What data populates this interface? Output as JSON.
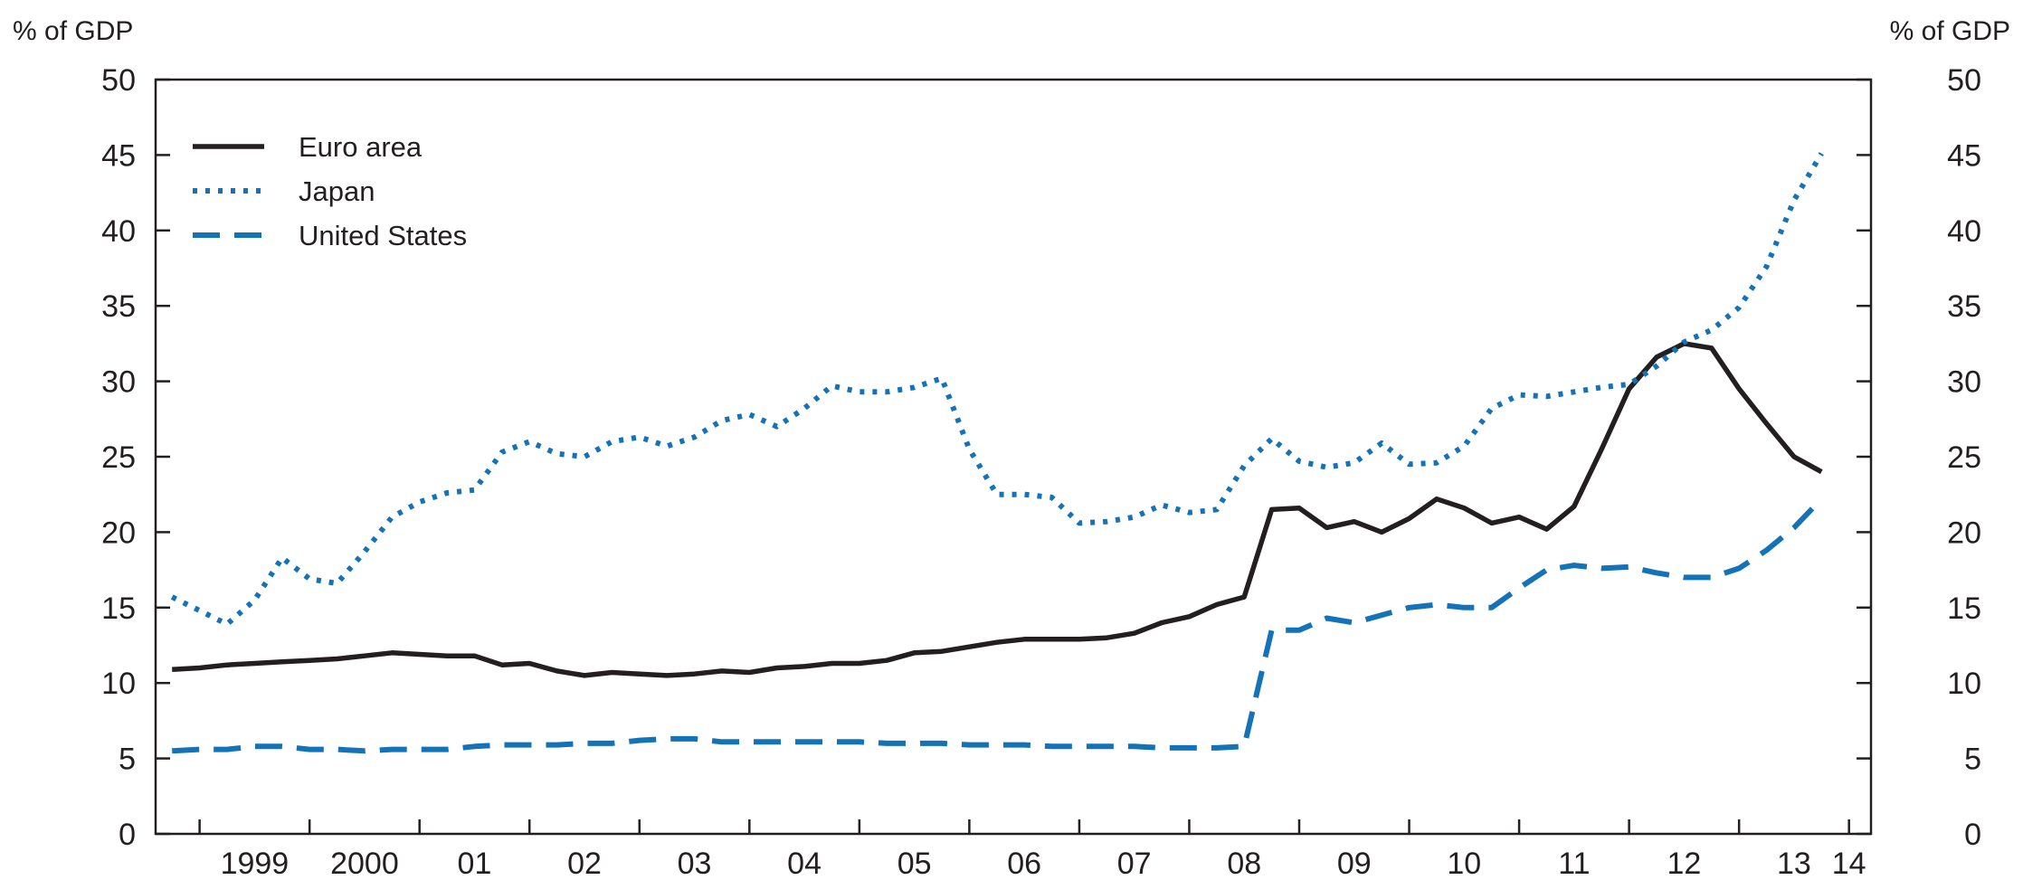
{
  "chart_data": {
    "type": "line",
    "title": "",
    "y_unit_left": "% of GDP",
    "y_unit_right": "% of GDP",
    "ylim": [
      0,
      50
    ],
    "yticks": [
      0,
      5,
      10,
      15,
      20,
      25,
      30,
      35,
      40,
      45,
      50
    ],
    "xlim": [
      1998.6,
      2014.2
    ],
    "x_tick_labels": [
      {
        "x": 1999.5,
        "label": "1999"
      },
      {
        "x": 2000.5,
        "label": "2000"
      },
      {
        "x": 2001.5,
        "label": "01"
      },
      {
        "x": 2002.5,
        "label": "02"
      },
      {
        "x": 2003.5,
        "label": "03"
      },
      {
        "x": 2004.5,
        "label": "04"
      },
      {
        "x": 2005.5,
        "label": "05"
      },
      {
        "x": 2006.5,
        "label": "06"
      },
      {
        "x": 2007.5,
        "label": "07"
      },
      {
        "x": 2008.5,
        "label": "08"
      },
      {
        "x": 2009.5,
        "label": "09"
      },
      {
        "x": 2010.5,
        "label": "10"
      },
      {
        "x": 2011.5,
        "label": "11"
      },
      {
        "x": 2012.5,
        "label": "12"
      },
      {
        "x": 2013.5,
        "label": "13"
      },
      {
        "x": 2014.0,
        "label": "14"
      }
    ],
    "x_year_boundaries": [
      1999,
      2000,
      2001,
      2002,
      2003,
      2004,
      2005,
      2006,
      2007,
      2008,
      2009,
      2010,
      2011,
      2012,
      2013,
      2014
    ],
    "grid": false,
    "legend_position": "top-left",
    "series": [
      {
        "name": "Euro area",
        "style": "solid",
        "color": "#231f20",
        "points": [
          [
            1998.75,
            10.9
          ],
          [
            1999.0,
            11.0
          ],
          [
            1999.25,
            11.2
          ],
          [
            1999.5,
            11.3
          ],
          [
            1999.75,
            11.4
          ],
          [
            2000.0,
            11.5
          ],
          [
            2000.25,
            11.6
          ],
          [
            2000.5,
            11.8
          ],
          [
            2000.75,
            12.0
          ],
          [
            2001.0,
            11.9
          ],
          [
            2001.25,
            11.8
          ],
          [
            2001.5,
            11.8
          ],
          [
            2001.75,
            11.2
          ],
          [
            2002.0,
            11.3
          ],
          [
            2002.25,
            10.8
          ],
          [
            2002.5,
            10.5
          ],
          [
            2002.75,
            10.7
          ],
          [
            2003.0,
            10.6
          ],
          [
            2003.25,
            10.5
          ],
          [
            2003.5,
            10.6
          ],
          [
            2003.75,
            10.8
          ],
          [
            2004.0,
            10.7
          ],
          [
            2004.25,
            11.0
          ],
          [
            2004.5,
            11.1
          ],
          [
            2004.75,
            11.3
          ],
          [
            2005.0,
            11.3
          ],
          [
            2005.25,
            11.5
          ],
          [
            2005.5,
            12.0
          ],
          [
            2005.75,
            12.1
          ],
          [
            2006.0,
            12.4
          ],
          [
            2006.25,
            12.7
          ],
          [
            2006.5,
            12.9
          ],
          [
            2006.75,
            12.9
          ],
          [
            2007.0,
            12.9
          ],
          [
            2007.25,
            13.0
          ],
          [
            2007.5,
            13.3
          ],
          [
            2007.75,
            14.0
          ],
          [
            2008.0,
            14.4
          ],
          [
            2008.25,
            15.2
          ],
          [
            2008.5,
            15.7
          ],
          [
            2008.75,
            21.5
          ],
          [
            2009.0,
            21.6
          ],
          [
            2009.25,
            20.3
          ],
          [
            2009.5,
            20.7
          ],
          [
            2009.75,
            20.0
          ],
          [
            2010.0,
            20.9
          ],
          [
            2010.25,
            22.2
          ],
          [
            2010.5,
            21.6
          ],
          [
            2010.75,
            20.6
          ],
          [
            2011.0,
            21.0
          ],
          [
            2011.25,
            20.2
          ],
          [
            2011.5,
            21.7
          ],
          [
            2011.75,
            25.5
          ],
          [
            2012.0,
            29.5
          ],
          [
            2012.25,
            31.6
          ],
          [
            2012.5,
            32.5
          ],
          [
            2012.75,
            32.2
          ],
          [
            2013.0,
            29.5
          ],
          [
            2013.25,
            27.2
          ],
          [
            2013.5,
            25.0
          ],
          [
            2013.75,
            24.0
          ]
        ]
      },
      {
        "name": "Japan",
        "style": "dotted",
        "color": "#1473b8",
        "points": [
          [
            1998.75,
            15.7
          ],
          [
            1999.0,
            14.8
          ],
          [
            1999.25,
            13.9
          ],
          [
            1999.5,
            15.5
          ],
          [
            1999.75,
            18.3
          ],
          [
            2000.0,
            16.9
          ],
          [
            2000.25,
            16.6
          ],
          [
            2000.5,
            18.7
          ],
          [
            2000.75,
            21.0
          ],
          [
            2001.0,
            22.0
          ],
          [
            2001.25,
            22.6
          ],
          [
            2001.5,
            22.8
          ],
          [
            2001.75,
            25.3
          ],
          [
            2002.0,
            26.0
          ],
          [
            2002.25,
            25.2
          ],
          [
            2002.5,
            25.0
          ],
          [
            2002.75,
            26.0
          ],
          [
            2003.0,
            26.3
          ],
          [
            2003.25,
            25.7
          ],
          [
            2003.5,
            26.3
          ],
          [
            2003.75,
            27.4
          ],
          [
            2004.0,
            27.8
          ],
          [
            2004.25,
            27.0
          ],
          [
            2004.5,
            28.2
          ],
          [
            2004.75,
            29.7
          ],
          [
            2005.0,
            29.3
          ],
          [
            2005.25,
            29.3
          ],
          [
            2005.5,
            29.6
          ],
          [
            2005.75,
            30.2
          ],
          [
            2006.0,
            25.5
          ],
          [
            2006.25,
            22.5
          ],
          [
            2006.5,
            22.5
          ],
          [
            2006.75,
            22.3
          ],
          [
            2007.0,
            20.6
          ],
          [
            2007.25,
            20.7
          ],
          [
            2007.5,
            21.0
          ],
          [
            2007.75,
            21.8
          ],
          [
            2008.0,
            21.3
          ],
          [
            2008.25,
            21.5
          ],
          [
            2008.5,
            24.4
          ],
          [
            2008.75,
            26.2
          ],
          [
            2009.0,
            24.7
          ],
          [
            2009.25,
            24.3
          ],
          [
            2009.5,
            24.6
          ],
          [
            2009.75,
            25.9
          ],
          [
            2010.0,
            24.5
          ],
          [
            2010.25,
            24.6
          ],
          [
            2010.5,
            25.7
          ],
          [
            2010.75,
            28.2
          ],
          [
            2011.0,
            29.1
          ],
          [
            2011.25,
            29.0
          ],
          [
            2011.5,
            29.3
          ],
          [
            2011.75,
            29.6
          ],
          [
            2012.0,
            29.8
          ],
          [
            2012.25,
            31.0
          ],
          [
            2012.5,
            32.6
          ],
          [
            2012.75,
            33.4
          ],
          [
            2013.0,
            34.9
          ],
          [
            2013.25,
            37.6
          ],
          [
            2013.5,
            42.0
          ],
          [
            2013.75,
            45.1
          ]
        ]
      },
      {
        "name": "United States",
        "style": "dashed",
        "color": "#1473b8",
        "points": [
          [
            1998.75,
            5.5
          ],
          [
            1999.0,
            5.6
          ],
          [
            1999.25,
            5.6
          ],
          [
            1999.5,
            5.8
          ],
          [
            1999.75,
            5.8
          ],
          [
            2000.0,
            5.6
          ],
          [
            2000.25,
            5.6
          ],
          [
            2000.5,
            5.5
          ],
          [
            2000.75,
            5.6
          ],
          [
            2001.0,
            5.6
          ],
          [
            2001.25,
            5.6
          ],
          [
            2001.5,
            5.8
          ],
          [
            2001.75,
            5.9
          ],
          [
            2002.0,
            5.9
          ],
          [
            2002.25,
            5.9
          ],
          [
            2002.5,
            6.0
          ],
          [
            2002.75,
            6.0
          ],
          [
            2003.0,
            6.2
          ],
          [
            2003.25,
            6.3
          ],
          [
            2003.5,
            6.3
          ],
          [
            2003.75,
            6.1
          ],
          [
            2004.0,
            6.1
          ],
          [
            2004.25,
            6.1
          ],
          [
            2004.5,
            6.1
          ],
          [
            2004.75,
            6.1
          ],
          [
            2005.0,
            6.1
          ],
          [
            2005.25,
            6.0
          ],
          [
            2005.5,
            6.0
          ],
          [
            2005.75,
            6.0
          ],
          [
            2006.0,
            5.9
          ],
          [
            2006.25,
            5.9
          ],
          [
            2006.5,
            5.9
          ],
          [
            2006.75,
            5.8
          ],
          [
            2007.0,
            5.8
          ],
          [
            2007.25,
            5.8
          ],
          [
            2007.5,
            5.8
          ],
          [
            2007.75,
            5.7
          ],
          [
            2008.0,
            5.7
          ],
          [
            2008.25,
            5.7
          ],
          [
            2008.5,
            5.8
          ],
          [
            2008.75,
            13.5
          ],
          [
            2009.0,
            13.5
          ],
          [
            2009.25,
            14.3
          ],
          [
            2009.5,
            14.0
          ],
          [
            2009.75,
            14.5
          ],
          [
            2010.0,
            15.0
          ],
          [
            2010.25,
            15.2
          ],
          [
            2010.5,
            15.0
          ],
          [
            2010.75,
            15.0
          ],
          [
            2011.0,
            16.3
          ],
          [
            2011.25,
            17.5
          ],
          [
            2011.5,
            17.8
          ],
          [
            2011.75,
            17.6
          ],
          [
            2012.0,
            17.7
          ],
          [
            2012.25,
            17.3
          ],
          [
            2012.5,
            17.0
          ],
          [
            2012.75,
            17.0
          ],
          [
            2013.0,
            17.6
          ],
          [
            2013.25,
            18.8
          ],
          [
            2013.5,
            20.3
          ],
          [
            2013.75,
            22.2
          ]
        ]
      }
    ]
  }
}
